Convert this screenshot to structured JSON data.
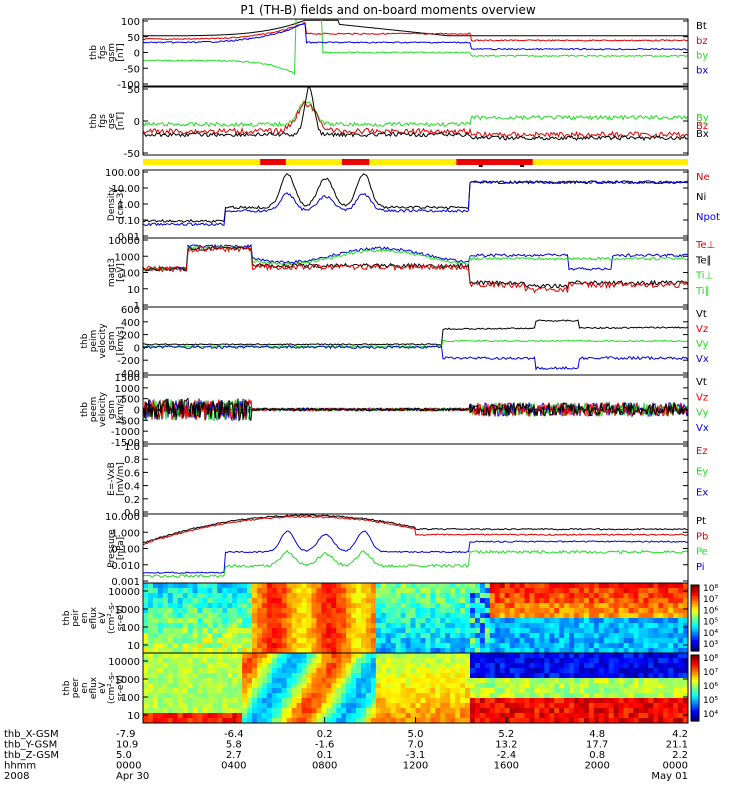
{
  "title": "P1 (TH-B) fields and on-board moments overview",
  "colors": {
    "black": "#000000",
    "red": "#dd0000",
    "green": "#22dd22",
    "blue": "#0000dd",
    "yellow": "#ffee00",
    "bar_red": "#ee0000"
  },
  "chart_data": [
    {
      "type": "line",
      "id": "fgs_gsm",
      "ylabel": [
        "thb",
        "fgs",
        "gsm",
        "[nT]"
      ],
      "yticks": [
        "100",
        "50",
        "0",
        "-50",
        "-100"
      ],
      "ylim": [
        -100,
        100
      ],
      "legend": [
        {
          "label": "Bt",
          "color": "#000000"
        },
        {
          "label": "bz",
          "color": "#dd0000"
        },
        {
          "label": "by",
          "color": "#22dd22"
        },
        {
          "label": "bx",
          "color": "#0000dd"
        }
      ]
    },
    {
      "type": "line",
      "id": "fgs_gse",
      "ylabel": [
        "thb",
        "fgs",
        "gse",
        "[nT]"
      ],
      "yticks": [
        "50",
        "0",
        "-50"
      ],
      "ylim": [
        -70,
        60
      ],
      "legend": [
        {
          "label": "By",
          "color": "#22dd22"
        },
        {
          "label": "Bz",
          "color": "#dd0000"
        },
        {
          "label": "Bx",
          "color": "#000000"
        }
      ]
    },
    {
      "type": "line",
      "id": "density",
      "scale": "log",
      "ylabel": [
        "Density",
        "[cm-3]"
      ],
      "yticks": [
        "100.00",
        "10.00",
        "1.00",
        "0.10",
        "0.01"
      ],
      "ylim": [
        0.01,
        300
      ],
      "legend": [
        {
          "label": "Ne",
          "color": "#dd0000"
        },
        {
          "label": "Ni",
          "color": "#000000"
        },
        {
          "label": "Npot",
          "color": "#0000dd"
        }
      ]
    },
    {
      "type": "line",
      "id": "temperature",
      "scale": "log",
      "ylabel": [
        "magt3",
        "[eV]"
      ],
      "yticks": [
        "10000",
        "1000",
        "100",
        "10",
        "1"
      ],
      "ylim": [
        1,
        10000
      ],
      "legend": [
        {
          "label": "Te⊥",
          "color": "#dd0000"
        },
        {
          "label": "Te∥",
          "color": "#000000"
        },
        {
          "label": "Ti⊥",
          "color": "#22dd22"
        },
        {
          "label": "Ti∥",
          "color": "#22dd22"
        }
      ]
    },
    {
      "type": "line",
      "id": "peim_velocity",
      "ylabel": [
        "thb",
        "peim",
        "velocity",
        "gsm",
        "[km/s]"
      ],
      "yticks": [
        "600",
        "400",
        "200",
        "0",
        "-200",
        "-400"
      ],
      "ylim": [
        -450,
        600
      ],
      "legend": [
        {
          "label": "Vt",
          "color": "#000000"
        },
        {
          "label": "Vz",
          "color": "#dd0000"
        },
        {
          "label": "Vy",
          "color": "#22dd22"
        },
        {
          "label": "Vx",
          "color": "#0000dd"
        }
      ]
    },
    {
      "type": "line",
      "id": "peem_velocity",
      "ylabel": [
        "thb",
        "peem",
        "velocity",
        "gsm",
        "[km/s]"
      ],
      "yticks": [
        "1500",
        "1000",
        "500",
        "0",
        "-500",
        "-1000",
        "-1500"
      ],
      "ylim": [
        -1500,
        1500
      ],
      "legend": [
        {
          "label": "Vt",
          "color": "#000000"
        },
        {
          "label": "Vz",
          "color": "#dd0000"
        },
        {
          "label": "Vy",
          "color": "#22dd22"
        },
        {
          "label": "Vx",
          "color": "#0000dd"
        }
      ]
    },
    {
      "type": "line",
      "id": "efield",
      "ylabel": [
        "E=-VxB",
        "[mV/m]"
      ],
      "yticks": [
        "1.0",
        "0.8",
        "0.6",
        "0.4",
        "0.2",
        "0.0"
      ],
      "ylim": [
        0,
        1
      ],
      "legend": [
        {
          "label": "Ez",
          "color": "#dd0000"
        },
        {
          "label": "Ey",
          "color": "#22dd22"
        },
        {
          "label": "Ex",
          "color": "#0000dd"
        }
      ]
    },
    {
      "type": "line",
      "id": "pressure",
      "scale": "log",
      "ylabel": [
        "Pressure",
        "[nPa]"
      ],
      "yticks": [
        "10.000",
        "1.000",
        "0.100",
        "0.010",
        "0.001"
      ],
      "ylim": [
        0.0003,
        10
      ],
      "legend": [
        {
          "label": "Pt",
          "color": "#000000"
        },
        {
          "label": "Pb",
          "color": "#dd0000"
        },
        {
          "label": "Pe",
          "color": "#22dd22"
        },
        {
          "label": "Pi",
          "color": "#0000dd"
        }
      ]
    },
    {
      "type": "heatmap",
      "id": "peir_eflux",
      "ylabel": [
        "thb",
        "peir",
        "en",
        "eflux",
        "eV",
        "(cm²-s-",
        "sr-eV)"
      ],
      "yticks": [
        "10000",
        "1000",
        "100",
        "10"
      ],
      "colorbar": [
        "10⁸",
        "10⁷",
        "10⁶",
        "10⁵",
        "10⁴",
        "10³"
      ]
    },
    {
      "type": "heatmap",
      "id": "peer_eflux",
      "ylabel": [
        "thb",
        "peer",
        "en",
        "eflux",
        "eV",
        "(cm²-s-",
        "sr-eV)"
      ],
      "yticks": [
        "10000",
        "1000",
        "100",
        "10"
      ],
      "colorbar": [
        "10⁸",
        "10⁷",
        "10⁶",
        "10⁵",
        "10⁴"
      ]
    }
  ],
  "xaxis": {
    "row_labels": [
      "thb_X-GSM",
      "thb_Y-GSM",
      "thb_Z-GSM",
      "hhmm",
      "2008"
    ],
    "columns": [
      {
        "values": [
          "-7.9",
          "10.9",
          "5.0",
          "0000",
          "Apr 30"
        ]
      },
      {
        "values": [
          "-6.4",
          "5.8",
          "2.7",
          "0400",
          ""
        ]
      },
      {
        "values": [
          "0.2",
          "-1.6",
          "0.1",
          "0800",
          ""
        ]
      },
      {
        "values": [
          "5.0",
          "7.0",
          "-3.1",
          "1200",
          ""
        ]
      },
      {
        "values": [
          "5.2",
          "13.2",
          "-2.4",
          "1600",
          ""
        ]
      },
      {
        "values": [
          "4.8",
          "17.7",
          "0.8",
          "2000",
          ""
        ]
      },
      {
        "values": [
          "4.2",
          "21.1",
          "2.2",
          "0000",
          "May 01"
        ]
      }
    ]
  }
}
